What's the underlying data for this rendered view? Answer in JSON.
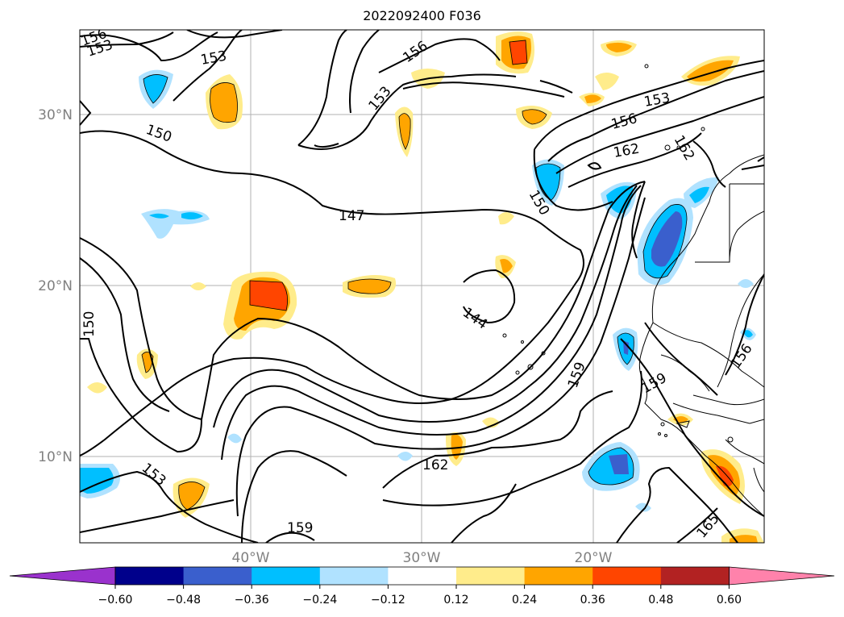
{
  "title": "2022092400 F036",
  "lat_labels": [
    "30°N",
    "20°N",
    "10°N"
  ],
  "lon_labels": [
    "40°W",
    "30°W",
    "20°W"
  ],
  "contour_labels": [
    "156",
    "153",
    "153",
    "156",
    "153",
    "150",
    "147",
    "150",
    "144",
    "159",
    "162",
    "159",
    "153",
    "159",
    "156",
    "153",
    "156",
    "162",
    "162",
    "150",
    "165"
  ],
  "colorbar": {
    "ticks": [
      "−0.60",
      "−0.48",
      "−0.36",
      "−0.24",
      "−0.12",
      "0.12",
      "0.24",
      "0.36",
      "0.48",
      "0.60"
    ],
    "colors": [
      "#9a32cd",
      "#00008b",
      "#3a5fcd",
      "#00bfff",
      "#b0e2ff",
      "#ffffff",
      "#ffec8b",
      "#ffa500",
      "#ff4500",
      "#b22222",
      "#ff82ab"
    ]
  }
}
